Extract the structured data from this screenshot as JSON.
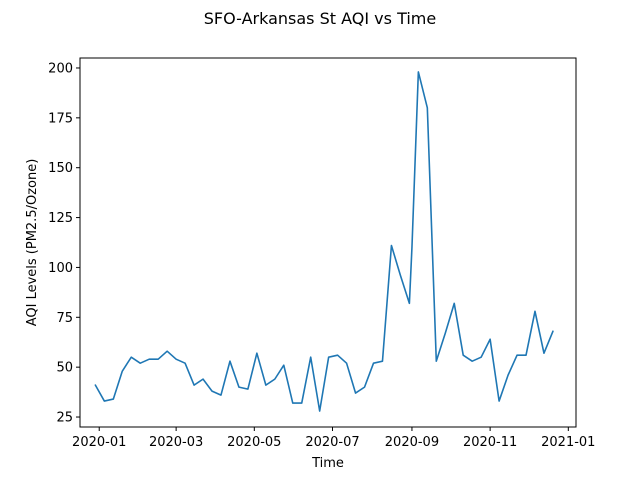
{
  "chart_data": {
    "type": "line",
    "title": "SFO-Arkansas St AQI vs Time",
    "xlabel": "Time",
    "ylabel": "AQI Levels (PM2.5/Ozone)",
    "x_tick_labels": [
      "2020-01",
      "2020-03",
      "2020-05",
      "2020-07",
      "2020-09",
      "2020-11",
      "2021-01"
    ],
    "x_tick_dates": [
      "2020-01-01",
      "2020-03-01",
      "2020-05-01",
      "2020-07-01",
      "2020-09-01",
      "2020-11-01",
      "2021-01-01"
    ],
    "y_ticks": [
      25,
      50,
      75,
      100,
      125,
      150,
      175,
      200
    ],
    "xlim": [
      "2019-12-17",
      "2021-01-07"
    ],
    "ylim": [
      20,
      205
    ],
    "grid": false,
    "color": "#1f77b4",
    "series": [
      {
        "x": [
          "2019-12-29",
          "2020-01-05",
          "2020-01-12",
          "2020-01-19",
          "2020-01-26",
          "2020-02-02",
          "2020-02-09",
          "2020-02-16",
          "2020-02-23",
          "2020-03-01",
          "2020-03-08",
          "2020-03-15",
          "2020-03-22",
          "2020-03-29",
          "2020-04-05",
          "2020-04-12",
          "2020-04-19",
          "2020-04-26",
          "2020-05-03",
          "2020-05-10",
          "2020-05-17",
          "2020-05-24",
          "2020-05-31",
          "2020-06-07",
          "2020-06-14",
          "2020-06-21",
          "2020-06-28",
          "2020-07-05",
          "2020-07-12",
          "2020-07-19",
          "2020-07-26",
          "2020-08-02",
          "2020-08-09",
          "2020-08-16",
          "2020-08-23",
          "2020-08-30",
          "2020-09-01",
          "2020-09-06",
          "2020-09-13",
          "2020-09-20",
          "2020-09-27",
          "2020-10-04",
          "2020-10-11",
          "2020-10-18",
          "2020-10-25",
          "2020-11-01",
          "2020-11-08",
          "2020-11-15",
          "2020-11-22",
          "2020-11-29",
          "2020-12-06",
          "2020-12-13",
          "2020-12-20"
        ],
        "y": [
          41,
          33,
          34,
          48,
          55,
          52,
          54,
          54,
          58,
          54,
          52,
          41,
          44,
          38,
          36,
          53,
          40,
          39,
          57,
          41,
          44,
          51,
          32,
          32,
          55,
          28,
          55,
          56,
          52,
          37,
          40,
          52,
          53,
          111,
          96,
          82,
          110,
          198,
          180,
          53,
          67,
          82,
          56,
          53,
          55,
          64,
          33,
          46,
          56,
          56,
          78,
          57,
          68
        ]
      }
    ]
  }
}
